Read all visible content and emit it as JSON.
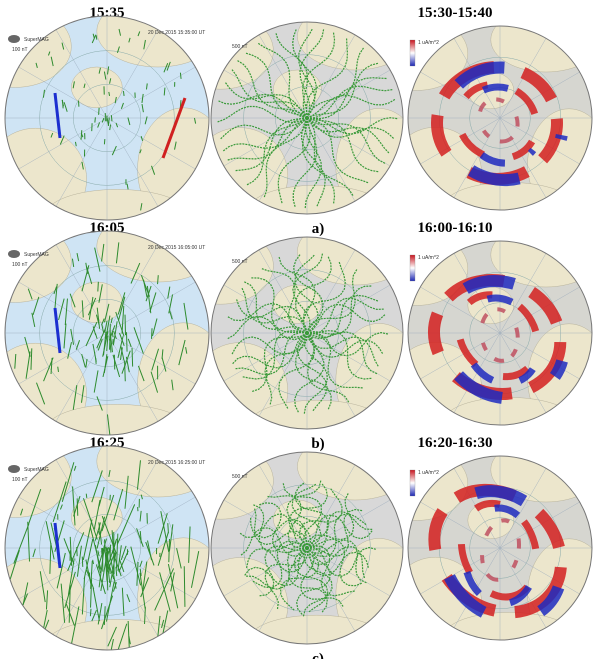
{
  "figure": {
    "rows": [
      {
        "time": "15:35",
        "interval": "15:30-15:40",
        "label": "a)",
        "source": "SuperMAG",
        "scale_left": "100 nT",
        "date": "20 Dec 2015 15:35:00 UT",
        "scale_middle": "500 nT",
        "scale_right": "1 uA/m^2"
      },
      {
        "time": "16:05",
        "interval": "16:00-16:10",
        "label": "b)",
        "source": "SuperMAG",
        "scale_left": "100 nT",
        "date": "20 Dec 2015 16:05:00 UT",
        "scale_middle": "500 nT",
        "scale_right": "1 uA/m^2"
      },
      {
        "time": "16:25",
        "interval": "16:20-16:30",
        "label": "c)",
        "source": "SuperMAG",
        "scale_left": "100 nT",
        "date": "20 Dec 2015 16:25:00 UT",
        "scale_middle": "500 nT",
        "scale_right": "1 uA/m^2"
      }
    ]
  }
}
